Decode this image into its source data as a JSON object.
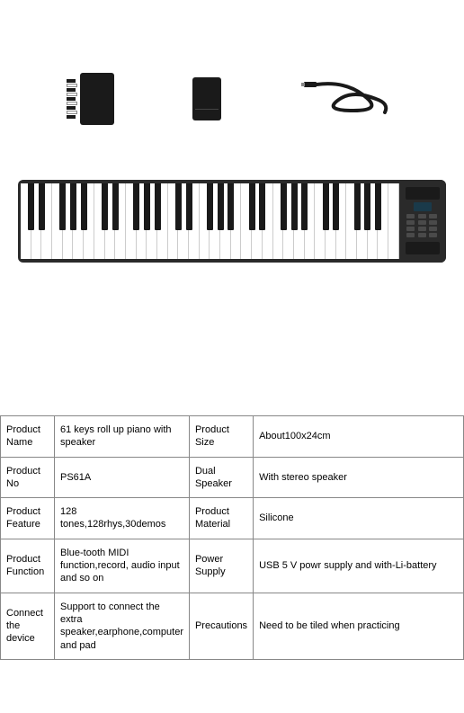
{
  "colors": {
    "background": "#ffffff",
    "product_dark": "#1a1a1a",
    "panel_dark": "#2a2a2a",
    "border": "#888888",
    "text": "#000000"
  },
  "piano": {
    "white_keys": 36,
    "black_key_pattern": [
      1,
      1,
      0,
      1,
      1,
      1,
      0
    ]
  },
  "specs": {
    "rows": [
      {
        "label1": "Product Name",
        "value1": "61 keys roll up piano with speaker",
        "label2": "Product Size",
        "value2": "About100x24cm"
      },
      {
        "label1": "Product No",
        "value1": "PS61A",
        "label2": "Dual Speaker",
        "value2": "With stereo speaker"
      },
      {
        "label1": "Product Feature",
        "value1": "128 tones,128rhys,30demos",
        "label2": "Product Material",
        "value2": "Silicone"
      },
      {
        "label1": "Product Function",
        "value1": "Blue-tooth MIDI function,record, audio input and so on",
        "label2": "Power Supply",
        "value2": "USB 5 V powr supply and with-Li-battery"
      },
      {
        "label1": "Connect the device",
        "value1": "Support to connect the extra speaker,earphone,computer and pad",
        "label2": "Precautions",
        "value2": "Need to be tiled when practicing"
      }
    ]
  }
}
